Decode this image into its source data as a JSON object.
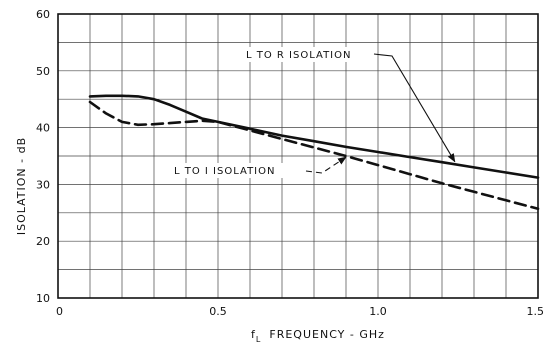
{
  "chart_data": {
    "type": "line",
    "xlim": [
      0,
      1.5
    ],
    "ylim": [
      10,
      60
    ],
    "xticks": [
      0,
      0.5,
      1.0,
      1.5
    ],
    "xtick_labels": [
      "0",
      "0.5",
      "1.0",
      "1.5"
    ],
    "yticks": [
      10,
      20,
      30,
      40,
      50,
      60
    ],
    "ytick_labels": [
      "10",
      "20",
      "30",
      "40",
      "50",
      "60"
    ],
    "grid": true,
    "xlabel_prefix": "f",
    "xlabel_sub": "L",
    "xlabel_rest": "FREQUENCY - GHz",
    "ylabel": "ISOLATION - dB",
    "series": [
      {
        "name": "L TO R ISOLATION",
        "style": "solid",
        "x": [
          0.1,
          0.15,
          0.2,
          0.25,
          0.3,
          0.35,
          0.4,
          0.45,
          0.5,
          0.6,
          0.7,
          0.8,
          0.9,
          1.0,
          1.1,
          1.2,
          1.3,
          1.4,
          1.5
        ],
        "y": [
          45.5,
          45.6,
          45.6,
          45.5,
          45.0,
          44.0,
          42.8,
          41.6,
          41.0,
          39.8,
          38.6,
          37.6,
          36.6,
          35.7,
          34.8,
          33.9,
          33.0,
          32.1,
          31.2
        ]
      },
      {
        "name": "L TO I ISOLATION",
        "style": "dashed",
        "x": [
          0.1,
          0.15,
          0.2,
          0.25,
          0.3,
          0.35,
          0.4,
          0.45,
          0.5,
          0.6,
          0.7,
          0.8,
          0.9,
          1.0,
          1.1,
          1.2,
          1.3,
          1.4,
          1.5
        ],
        "y": [
          44.5,
          42.5,
          41.0,
          40.5,
          40.6,
          40.8,
          41.0,
          41.2,
          41.0,
          39.5,
          38.0,
          36.5,
          35.0,
          33.4,
          31.8,
          30.2,
          28.7,
          27.2,
          25.7
        ]
      }
    ],
    "annotations": [
      {
        "text": "L TO R ISOLATION",
        "series": 0,
        "points_to": [
          1.24,
          34.0
        ]
      },
      {
        "text": "L TO I ISOLATION",
        "series": 1,
        "points_to": [
          0.9,
          34.8
        ]
      }
    ]
  }
}
